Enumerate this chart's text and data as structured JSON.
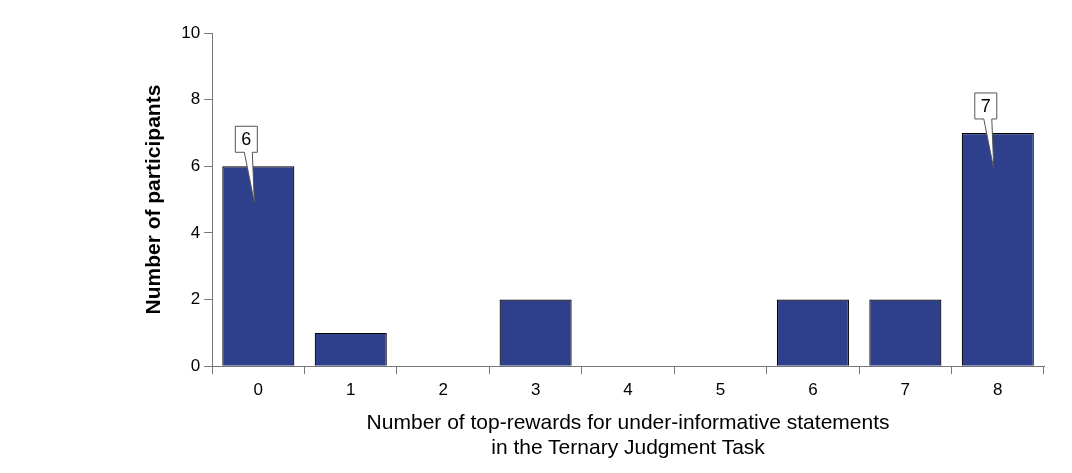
{
  "chart_data": {
    "type": "bar",
    "xlabel": "Number of top-rewards for under-informative statements\nin the Ternary Judgment Task",
    "ylabel": "Number of participants",
    "categories": [
      "0",
      "1",
      "2",
      "3",
      "4",
      "5",
      "6",
      "7",
      "8"
    ],
    "values": [
      6,
      1,
      0,
      2,
      0,
      0,
      2,
      2,
      7
    ],
    "value_labels": [
      "6",
      null,
      null,
      null,
      null,
      null,
      null,
      null,
      "7"
    ],
    "color": "#2e3f8c",
    "ylim": [
      0,
      10
    ],
    "yticks": [
      0,
      2,
      4,
      6,
      8,
      10
    ],
    "grid": false,
    "legend": false
  }
}
